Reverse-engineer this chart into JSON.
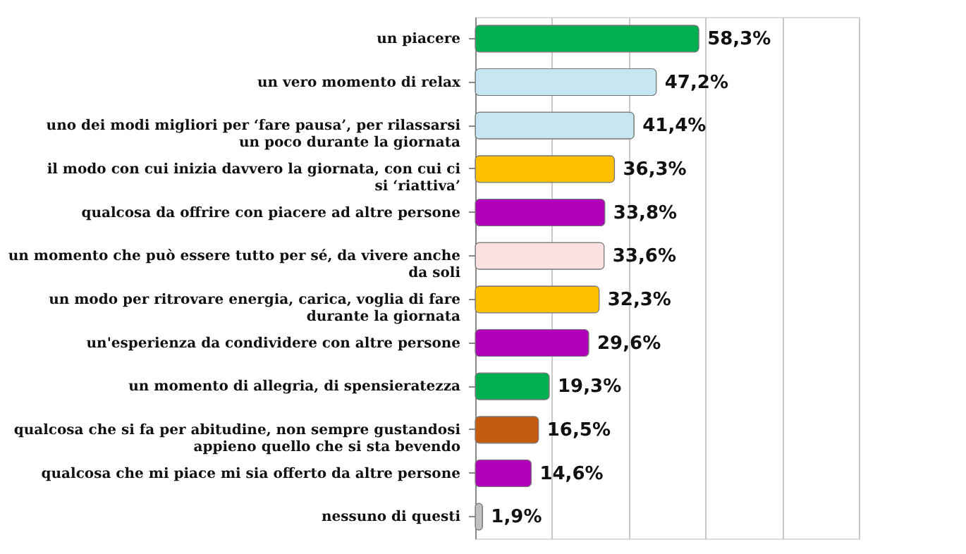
{
  "chart_data": {
    "type": "bar",
    "orientation": "horizontal",
    "categories": [
      "un piacere",
      "un vero momento di relax",
      "uno dei modi migliori per ‘fare pausa’, per rilassarsi un poco durante la giornata",
      "il modo con cui inizia davvero la giornata, con cui ci si ‘riattiva’",
      "qualcosa da offrire con piacere ad altre persone",
      "un momento che può essere tutto per sé, da vivere anche da soli",
      "un modo per ritrovare energia, carica, voglia di fare durante la giornata",
      "un'esperienza da condividere con altre persone",
      "un momento di allegria, di spensieratezza",
      "qualcosa che si fa per abitudine, non sempre gustandosi appieno quello che si sta bevendo",
      "qualcosa che mi piace mi sia offerto da altre persone",
      "nessuno di questi"
    ],
    "values": [
      58.3,
      47.2,
      41.4,
      36.3,
      33.8,
      33.6,
      32.3,
      29.6,
      19.3,
      16.5,
      14.6,
      1.9
    ],
    "colors": [
      "#00b050",
      "#c6e6f2",
      "#c6e6f2",
      "#ffc000",
      "#b000b8",
      "#fde0e0",
      "#ffc000",
      "#b000b8",
      "#00b050",
      "#c55a11",
      "#b000b8",
      "#c0c0c0"
    ],
    "value_labels": [
      "58,3%",
      "47,2%",
      "41,4%",
      "36,3%",
      "33,8%",
      "33,6%",
      "32,3%",
      "29,6%",
      "19,3%",
      "16,5%",
      "14,6%",
      "1,9%"
    ],
    "xlim": [
      0,
      100
    ],
    "xticks": [
      {
        "value": 0,
        "label": null
      },
      {
        "value": 20,
        "label": null
      },
      {
        "value": 40,
        "label": null
      },
      {
        "value": 60,
        "label": null
      },
      {
        "value": 80,
        "label": null
      },
      {
        "value": 100,
        "label": null
      }
    ],
    "grid": "x",
    "tick_labels": "y"
  }
}
